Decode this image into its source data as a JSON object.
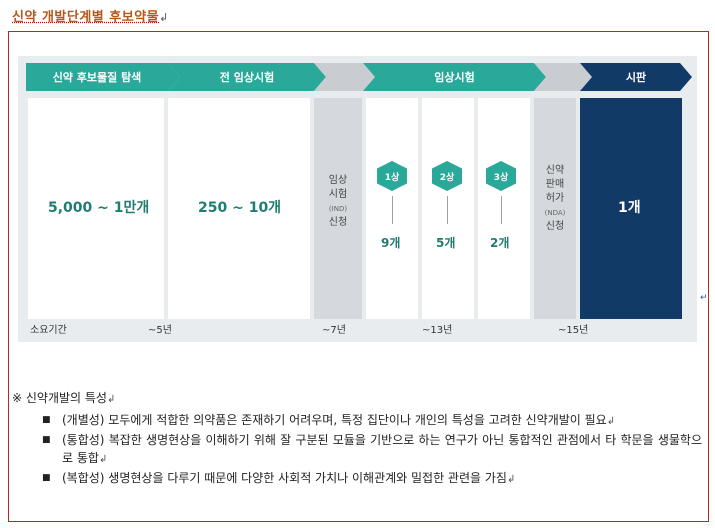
{
  "title": {
    "text": "신약 개발단계별 후보약물",
    "return_mark": "↲"
  },
  "figure": {
    "stages": [
      {
        "label": "신약 후보물질 탐색"
      },
      {
        "label": "전 임상시험"
      },
      {
        "label": "임상시험"
      },
      {
        "label": "시판"
      }
    ],
    "candidates": {
      "discovery": "5,000 ~ 1만개",
      "preclinical": "250 ~ 10개",
      "market": "1개"
    },
    "ind_box": {
      "line1": "임상",
      "line2": "시험",
      "abbr": "(IND)",
      "line3": "신청"
    },
    "nda_box": {
      "line1": "신약",
      "line2": "판매",
      "line3": "허가",
      "abbr": "(NDA)",
      "line4": "신청"
    },
    "phases": [
      {
        "label": "1상",
        "count": "9개"
      },
      {
        "label": "2상",
        "count": "5개"
      },
      {
        "label": "3상",
        "count": "2개"
      }
    ],
    "durations": {
      "label": "소요기간",
      "d1": "~5년",
      "d2": "~7년",
      "d3": "~13년",
      "d4": "~15년"
    },
    "colors": {
      "teal": "#2aa89a",
      "navy": "#123a66",
      "gray": "#c9cdd1"
    }
  },
  "side_mark": "↵",
  "features": {
    "heading": "※ 신약개발의 특성",
    "items": [
      "(개별성) 모두에게 적합한 의약품은 존재하기 어려우며, 특정 집단이나 개인의 특성을 고려한 신약개발이 필요",
      "(통합성) 복잡한 생명현상을 이해하기 위해 잘 구분된 모듈을 기반으로 하는 연구가 아닌 통합적인 관점에서 타 학문을 생물학으로 통합",
      "(복합성) 생명현상을 다루기 때문에 다양한 사회적 가치나 이해관계와 밀접한 관련을 가짐"
    ],
    "bullet_glyph": "■",
    "return_mark": "↲"
  }
}
